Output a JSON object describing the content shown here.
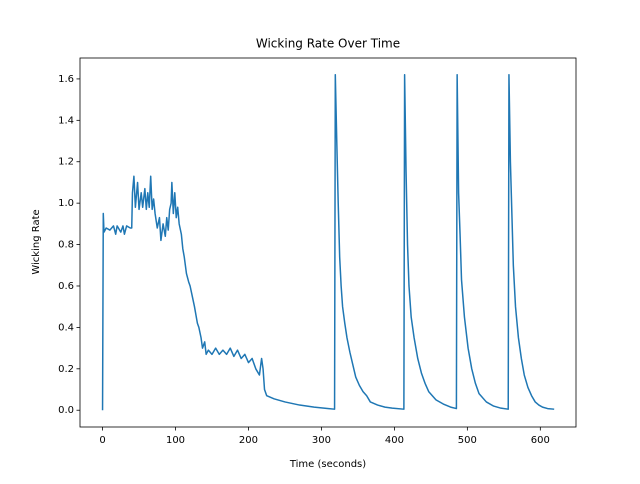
{
  "chart_data": {
    "type": "line",
    "title": "Wicking Rate Over Time",
    "x_label": "Time (seconds)",
    "y_label": "Wicking Rate",
    "xlim": [
      -30.9,
      648.9
    ],
    "ylim": [
      -0.081,
      1.701
    ],
    "xticks": [
      0,
      100,
      200,
      300,
      400,
      500,
      600
    ],
    "yticks": [
      {
        "value": 0,
        "label": "0.0"
      },
      0.2,
      0.4,
      0.6,
      0.8,
      {
        "value": 1,
        "label": "1.0"
      },
      1.2,
      1.4,
      1.6
    ],
    "grid": false,
    "x": [
      0,
      1,
      2,
      5,
      10,
      15,
      18,
      20,
      25,
      28,
      30,
      33,
      38,
      40,
      41,
      43,
      45,
      48,
      50,
      53,
      55,
      58,
      60,
      62,
      64,
      66,
      68,
      70,
      72,
      75,
      78,
      80,
      83,
      86,
      88,
      90,
      92,
      94,
      95,
      97,
      99,
      101,
      103,
      105,
      108,
      110,
      112,
      115,
      118,
      120,
      123,
      126,
      128,
      130,
      132,
      135,
      137,
      140,
      142,
      145,
      150,
      155,
      160,
      165,
      170,
      175,
      180,
      185,
      190,
      195,
      200,
      205,
      210,
      215,
      218,
      220,
      222,
      225,
      235,
      250,
      270,
      290,
      310,
      318,
      319,
      321,
      323,
      325,
      327,
      329,
      332,
      335,
      339,
      343,
      347,
      352,
      357,
      362,
      367,
      377,
      387,
      397,
      413,
      414,
      416,
      418,
      420,
      423,
      427,
      432,
      437,
      442,
      447,
      457,
      467,
      477,
      485,
      486,
      488,
      490,
      492,
      496,
      501,
      506,
      511,
      516,
      526,
      536,
      546,
      556,
      557,
      559,
      561,
      563,
      566,
      570,
      574,
      578,
      583,
      588,
      593,
      598,
      603,
      610,
      619
    ],
    "series": [
      {
        "name": "Wicking Rate",
        "color": "#1f77b4",
        "values": [
          0,
          0.95,
          0.86,
          0.88,
          0.87,
          0.89,
          0.85,
          0.89,
          0.86,
          0.89,
          0.85,
          0.89,
          0.88,
          0.88,
          1.05,
          1.13,
          0.98,
          1.1,
          0.97,
          1.05,
          0.98,
          1.07,
          0.97,
          1.05,
          0.98,
          1.13,
          0.97,
          1.02,
          0.95,
          0.88,
          0.93,
          0.82,
          0.9,
          0.84,
          0.93,
          0.87,
          0.97,
          1.0,
          1.1,
          0.95,
          1.05,
          0.93,
          0.98,
          0.9,
          0.85,
          0.78,
          0.74,
          0.66,
          0.62,
          0.6,
          0.55,
          0.5,
          0.46,
          0.42,
          0.4,
          0.35,
          0.3,
          0.33,
          0.27,
          0.29,
          0.27,
          0.3,
          0.27,
          0.29,
          0.27,
          0.3,
          0.26,
          0.29,
          0.25,
          0.27,
          0.23,
          0.25,
          0.2,
          0.17,
          0.25,
          0.2,
          0.1,
          0.07,
          0.055,
          0.04,
          0.025,
          0.015,
          0.008,
          0.005,
          1.62,
          1.3,
          1.0,
          0.74,
          0.6,
          0.5,
          0.42,
          0.35,
          0.28,
          0.22,
          0.16,
          0.12,
          0.09,
          0.07,
          0.04,
          0.025,
          0.015,
          0.01,
          0.005,
          1.62,
          1.15,
          0.8,
          0.6,
          0.45,
          0.35,
          0.25,
          0.18,
          0.13,
          0.09,
          0.05,
          0.03,
          0.015,
          0.008,
          1.62,
          1.05,
          0.85,
          0.63,
          0.45,
          0.3,
          0.2,
          0.13,
          0.08,
          0.04,
          0.02,
          0.01,
          0.005,
          1.62,
          1.2,
          0.95,
          0.7,
          0.5,
          0.35,
          0.25,
          0.17,
          0.11,
          0.07,
          0.04,
          0.025,
          0.015,
          0.008,
          0.005
        ]
      }
    ]
  }
}
